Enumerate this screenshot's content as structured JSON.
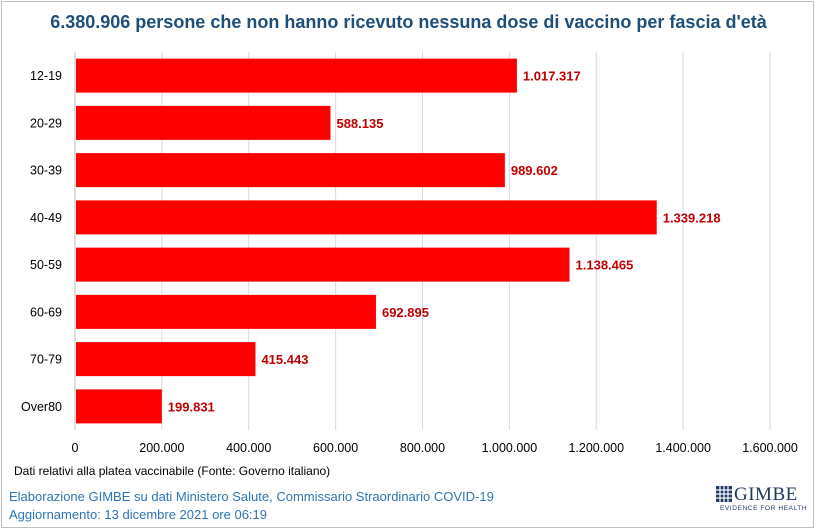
{
  "chart_data": {
    "type": "bar",
    "orientation": "horizontal",
    "title": "6.380.906 persone che non hanno ricevuto nessuna dose di vaccino per fascia d'età",
    "categories": [
      "12-19",
      "20-29",
      "30-39",
      "40-49",
      "50-59",
      "60-69",
      "70-79",
      "Over80"
    ],
    "values": [
      1017317,
      588135,
      989602,
      1339218,
      1138465,
      692895,
      415443,
      199831
    ],
    "value_labels": [
      "1.017.317",
      "588.135",
      "989.602",
      "1.339.218",
      "1.138.465",
      "692.895",
      "415.443",
      "199.831"
    ],
    "xlim": [
      0,
      1600000
    ],
    "x_ticks": [
      0,
      200000,
      400000,
      600000,
      800000,
      1000000,
      1200000,
      1400000,
      1600000
    ],
    "x_tick_labels": [
      "0",
      "200.000",
      "400.000",
      "600.000",
      "800.000",
      "1.000.000",
      "1.200.000",
      "1.400.000",
      "1.600.000"
    ],
    "grid": "vertical",
    "legend": "none",
    "bar_color": "#ff0000",
    "label_color": "#c00000"
  },
  "note": "Dati relativi alla platea vaccinabile (Fonte: Governo italiano)",
  "footer": {
    "line1": "Elaborazione GIMBE su dati Ministero Salute, Commissario Straordinario COVID-19",
    "line2": "Aggiornamento: 13 dicembre 2021 ore 06:19"
  },
  "logo": {
    "name": "GIMBE",
    "tagline": "EVIDENCE FOR HEALTH",
    "color": "#1f3864"
  },
  "colors": {
    "title": "#1f4e79",
    "footer": "#2e75b6"
  }
}
